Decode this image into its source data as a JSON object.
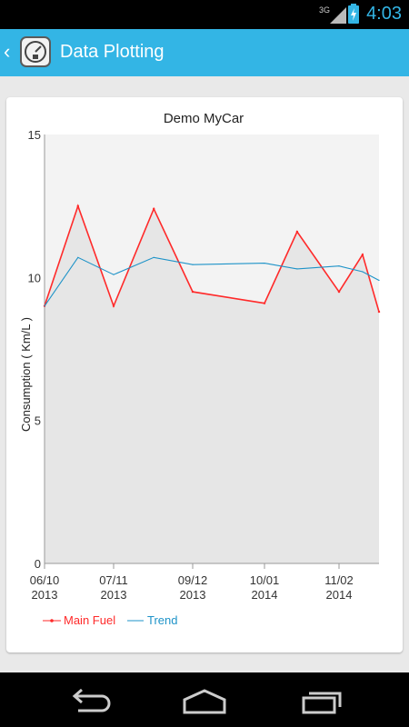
{
  "status_bar": {
    "network": "3G",
    "time": "4:03"
  },
  "action_bar": {
    "back_glyph": "‹",
    "title": "Data Plotting",
    "icon": "fuel-gauge-icon"
  },
  "colors": {
    "accent": "#33b5e5",
    "main_fuel": "#ff2a2a",
    "trend": "#1e93c8",
    "plot_bg": "#f3f3f3",
    "plot_fill": "#e6e6e6"
  },
  "chart_data": {
    "type": "line",
    "title": "Demo MyCar",
    "xlabel": "",
    "ylabel": "Consumption ( Km/L )",
    "ylim": [
      0,
      15
    ],
    "yticks": [
      "0",
      "5",
      "10",
      "15"
    ],
    "xticks": [
      {
        "date": "2013-06-10",
        "line1": "06/10",
        "line2": "2013"
      },
      {
        "date": "2013-07-11",
        "line1": "07/11",
        "line2": "2013"
      },
      {
        "date": "2013-09-12",
        "line1": "09/12",
        "line2": "2013"
      },
      {
        "date": "2014-10-01",
        "line1": "10/01",
        "line2": "2014"
      },
      {
        "date": "2014-11-02",
        "line1": "11/02",
        "line2": "2014"
      }
    ],
    "legend_position": "bottom-left",
    "series": [
      {
        "name": "Main Fuel",
        "points": [
          {
            "x": "2013-06-10",
            "y": 9.0
          },
          {
            "x": "2013-06-25",
            "y": 12.5
          },
          {
            "x": "2013-07-11",
            "y": 9.0
          },
          {
            "x": "2013-08-12",
            "y": 12.4
          },
          {
            "x": "2013-09-12",
            "y": 9.5
          },
          {
            "x": "2014-10-01",
            "y": 9.1
          },
          {
            "x": "2014-10-15",
            "y": 11.6
          },
          {
            "x": "2014-11-02",
            "y": 9.5
          },
          {
            "x": "2014-11-12",
            "y": 10.8
          },
          {
            "x": "2014-11-19",
            "y": 8.8
          }
        ]
      },
      {
        "name": "Trend",
        "points": [
          {
            "x": "2013-06-10",
            "y": 9.0
          },
          {
            "x": "2013-06-25",
            "y": 10.7
          },
          {
            "x": "2013-07-11",
            "y": 10.1
          },
          {
            "x": "2013-08-12",
            "y": 10.7
          },
          {
            "x": "2013-09-12",
            "y": 10.45
          },
          {
            "x": "2014-10-01",
            "y": 10.5
          },
          {
            "x": "2014-10-15",
            "y": 10.3
          },
          {
            "x": "2014-11-02",
            "y": 10.4
          },
          {
            "x": "2014-11-12",
            "y": 10.2
          },
          {
            "x": "2014-11-19",
            "y": 9.9
          }
        ]
      }
    ]
  },
  "nav": {
    "back": "back-icon",
    "home": "home-icon",
    "recents": "recent-apps-icon"
  }
}
